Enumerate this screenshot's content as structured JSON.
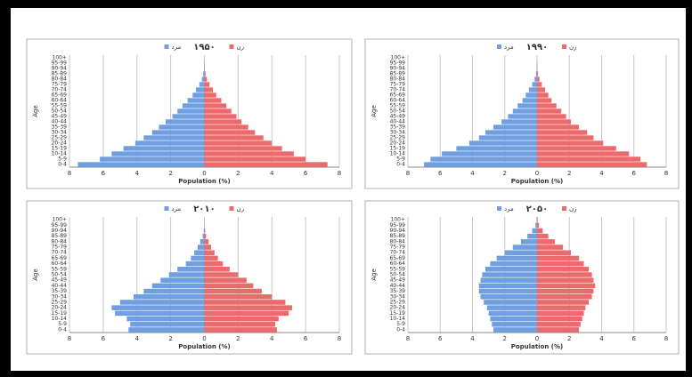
{
  "chart_data": [
    {
      "type": "pyramid",
      "title": "۱۹۵۰",
      "xlabel": "Population (%)",
      "ylabel": "Age",
      "categories": [
        "0-4",
        "5-9",
        "10-14",
        "15-19",
        "20-24",
        "25-29",
        "30-34",
        "35-39",
        "40-44",
        "45-49",
        "50-54",
        "55-59",
        "60-64",
        "65-69",
        "70-74",
        "75-79",
        "80-84",
        "85-89",
        "90-94",
        "95-99",
        "100+"
      ],
      "series": [
        {
          "name": "مرد",
          "color": "#6f9fe0",
          "values": [
            -7.5,
            -6.2,
            -5.5,
            -4.8,
            -4.1,
            -3.6,
            -3.1,
            -2.7,
            -2.3,
            -1.9,
            -1.6,
            -1.3,
            -1.0,
            -0.7,
            -0.5,
            -0.3,
            -0.15,
            -0.07,
            -0.02,
            -0.01,
            0
          ]
        },
        {
          "name": "زن",
          "color": "#ec6a6c",
          "values": [
            7.3,
            6.0,
            5.3,
            4.6,
            4.0,
            3.5,
            3.0,
            2.6,
            2.2,
            1.9,
            1.6,
            1.3,
            1.0,
            0.7,
            0.5,
            0.3,
            0.15,
            0.07,
            0.02,
            0.01,
            0
          ]
        }
      ],
      "xlim": [
        -8,
        8
      ],
      "xticks": [
        {
          "value": -8,
          "label": "8"
        },
        {
          "value": -6,
          "label": "6"
        },
        {
          "value": -4,
          "label": "4"
        },
        {
          "value": -2,
          "label": "2"
        },
        0,
        2,
        4,
        6,
        8
      ],
      "grid": true
    },
    {
      "type": "pyramid",
      "title": "۱۹۹۰",
      "xlabel": "Population (%)",
      "ylabel": "Age",
      "categories": [
        "0-4",
        "5-9",
        "10-14",
        "15-19",
        "20-24",
        "25-29",
        "30-34",
        "35-39",
        "40-44",
        "45-49",
        "50-54",
        "55-59",
        "60-64",
        "65-69",
        "70-74",
        "75-79",
        "80-84",
        "85-89",
        "90-94",
        "95-99",
        "100+"
      ],
      "series": [
        {
          "name": "مرد",
          "color": "#6f9fe0",
          "values": [
            -7.0,
            -6.6,
            -5.9,
            -5.0,
            -4.2,
            -3.6,
            -3.2,
            -2.7,
            -2.2,
            -1.8,
            -1.5,
            -1.2,
            -0.9,
            -0.7,
            -0.5,
            -0.3,
            -0.15,
            -0.06,
            -0.02,
            -0.01,
            0
          ]
        },
        {
          "name": "زن",
          "color": "#ec6a6c",
          "values": [
            6.8,
            6.4,
            5.7,
            4.9,
            4.1,
            3.5,
            3.1,
            2.6,
            2.1,
            1.8,
            1.5,
            1.2,
            0.9,
            0.7,
            0.5,
            0.3,
            0.15,
            0.06,
            0.02,
            0.01,
            0
          ]
        }
      ],
      "xlim": [
        -8,
        8
      ],
      "xticks": [
        {
          "value": -8,
          "label": "8"
        },
        {
          "value": -6,
          "label": "6"
        },
        {
          "value": -4,
          "label": "4"
        },
        {
          "value": -2,
          "label": "2"
        },
        0,
        2,
        4,
        6,
        8
      ],
      "grid": true
    },
    {
      "type": "pyramid",
      "title": "۲۰۱۰",
      "xlabel": "Population (%)",
      "ylabel": "Age",
      "categories": [
        "0-4",
        "5-9",
        "10-14",
        "15-19",
        "20-24",
        "25-29",
        "30-34",
        "35-39",
        "40-44",
        "45-49",
        "50-54",
        "55-59",
        "60-64",
        "65-69",
        "70-74",
        "75-79",
        "80-84",
        "85-89",
        "90-94",
        "95-99",
        "100+"
      ],
      "series": [
        {
          "name": "مرد",
          "color": "#6f9fe0",
          "values": [
            -4.5,
            -4.4,
            -4.6,
            -5.3,
            -5.5,
            -5.0,
            -4.2,
            -3.6,
            -3.1,
            -2.6,
            -2.1,
            -1.6,
            -1.1,
            -0.8,
            -0.6,
            -0.4,
            -0.25,
            -0.1,
            -0.04,
            -0.01,
            0
          ]
        },
        {
          "name": "زن",
          "color": "#ec6a6c",
          "values": [
            4.3,
            4.2,
            4.4,
            5.0,
            5.2,
            4.8,
            4.0,
            3.4,
            2.9,
            2.5,
            2.0,
            1.5,
            1.1,
            0.8,
            0.6,
            0.4,
            0.25,
            0.1,
            0.04,
            0.01,
            0
          ]
        }
      ],
      "xlim": [
        -8,
        8
      ],
      "xticks": [
        {
          "value": -8,
          "label": "8"
        },
        {
          "value": -6,
          "label": "6"
        },
        {
          "value": -4,
          "label": "4"
        },
        {
          "value": -2,
          "label": "2"
        },
        0,
        2,
        4,
        6,
        8
      ],
      "grid": true
    },
    {
      "type": "pyramid",
      "title": "۲۰۵۰",
      "xlabel": "Population (%)",
      "ylabel": "Age",
      "categories": [
        "0-4",
        "5-9",
        "10-14",
        "15-19",
        "20-24",
        "25-29",
        "30-34",
        "35-39",
        "40-44",
        "45-49",
        "50-54",
        "55-59",
        "60-64",
        "65-69",
        "70-74",
        "75-79",
        "80-84",
        "85-89",
        "90-94",
        "95-99",
        "100+"
      ],
      "series": [
        {
          "name": "مرد",
          "color": "#6f9fe0",
          "values": [
            -2.7,
            -2.8,
            -2.9,
            -3.0,
            -3.1,
            -3.3,
            -3.5,
            -3.6,
            -3.6,
            -3.5,
            -3.4,
            -3.2,
            -2.9,
            -2.5,
            -2.0,
            -1.5,
            -1.0,
            -0.6,
            -0.3,
            -0.1,
            -0.03
          ]
        },
        {
          "name": "زن",
          "color": "#ec6a6c",
          "values": [
            2.6,
            2.7,
            2.8,
            2.9,
            3.0,
            3.2,
            3.4,
            3.5,
            3.6,
            3.5,
            3.4,
            3.2,
            2.9,
            2.6,
            2.1,
            1.6,
            1.1,
            0.7,
            0.35,
            0.12,
            0.04
          ]
        }
      ],
      "xlim": [
        -8,
        8
      ],
      "xticks": [
        {
          "value": -8,
          "label": "8"
        },
        {
          "value": -6,
          "label": "6"
        },
        {
          "value": -4,
          "label": "4"
        },
        {
          "value": -2,
          "label": "2"
        },
        0,
        2,
        4,
        6,
        8
      ],
      "grid": true
    }
  ]
}
